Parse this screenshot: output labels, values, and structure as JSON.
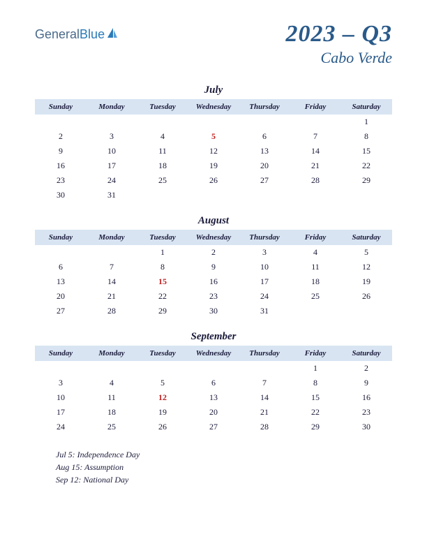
{
  "logo": {
    "part1": "General",
    "part2": "Blue"
  },
  "header": {
    "quarter": "2023 – Q3",
    "country": "Cabo Verde"
  },
  "colors": {
    "header_bg": "#d8e4f2",
    "text": "#1a1a3a",
    "title": "#2a5a8a",
    "holiday": "#c02020"
  },
  "day_headers": [
    "Sunday",
    "Monday",
    "Tuesday",
    "Wednesday",
    "Thursday",
    "Friday",
    "Saturday"
  ],
  "months": [
    {
      "name": "July",
      "weeks": [
        [
          "",
          "",
          "",
          "",
          "",
          "",
          "1"
        ],
        [
          "2",
          "3",
          "4",
          "5",
          "6",
          "7",
          "8"
        ],
        [
          "9",
          "10",
          "11",
          "12",
          "13",
          "14",
          "15"
        ],
        [
          "16",
          "17",
          "18",
          "19",
          "20",
          "21",
          "22"
        ],
        [
          "23",
          "24",
          "25",
          "26",
          "27",
          "28",
          "29"
        ],
        [
          "30",
          "31",
          "",
          "",
          "",
          "",
          ""
        ]
      ],
      "holidays": [
        "5"
      ]
    },
    {
      "name": "August",
      "weeks": [
        [
          "",
          "",
          "1",
          "2",
          "3",
          "4",
          "5"
        ],
        [
          "6",
          "7",
          "8",
          "9",
          "10",
          "11",
          "12"
        ],
        [
          "13",
          "14",
          "15",
          "16",
          "17",
          "18",
          "19"
        ],
        [
          "20",
          "21",
          "22",
          "23",
          "24",
          "25",
          "26"
        ],
        [
          "27",
          "28",
          "29",
          "30",
          "31",
          "",
          ""
        ]
      ],
      "holidays": [
        "15"
      ]
    },
    {
      "name": "September",
      "weeks": [
        [
          "",
          "",
          "",
          "",
          "",
          "1",
          "2"
        ],
        [
          "3",
          "4",
          "5",
          "6",
          "7",
          "8",
          "9"
        ],
        [
          "10",
          "11",
          "12",
          "13",
          "14",
          "15",
          "16"
        ],
        [
          "17",
          "18",
          "19",
          "20",
          "21",
          "22",
          "23"
        ],
        [
          "24",
          "25",
          "26",
          "27",
          "28",
          "29",
          "30"
        ]
      ],
      "holidays": [
        "12"
      ]
    }
  ],
  "holiday_list": [
    "Jul 5: Independence Day",
    "Aug 15: Assumption",
    "Sep 12: National Day"
  ]
}
